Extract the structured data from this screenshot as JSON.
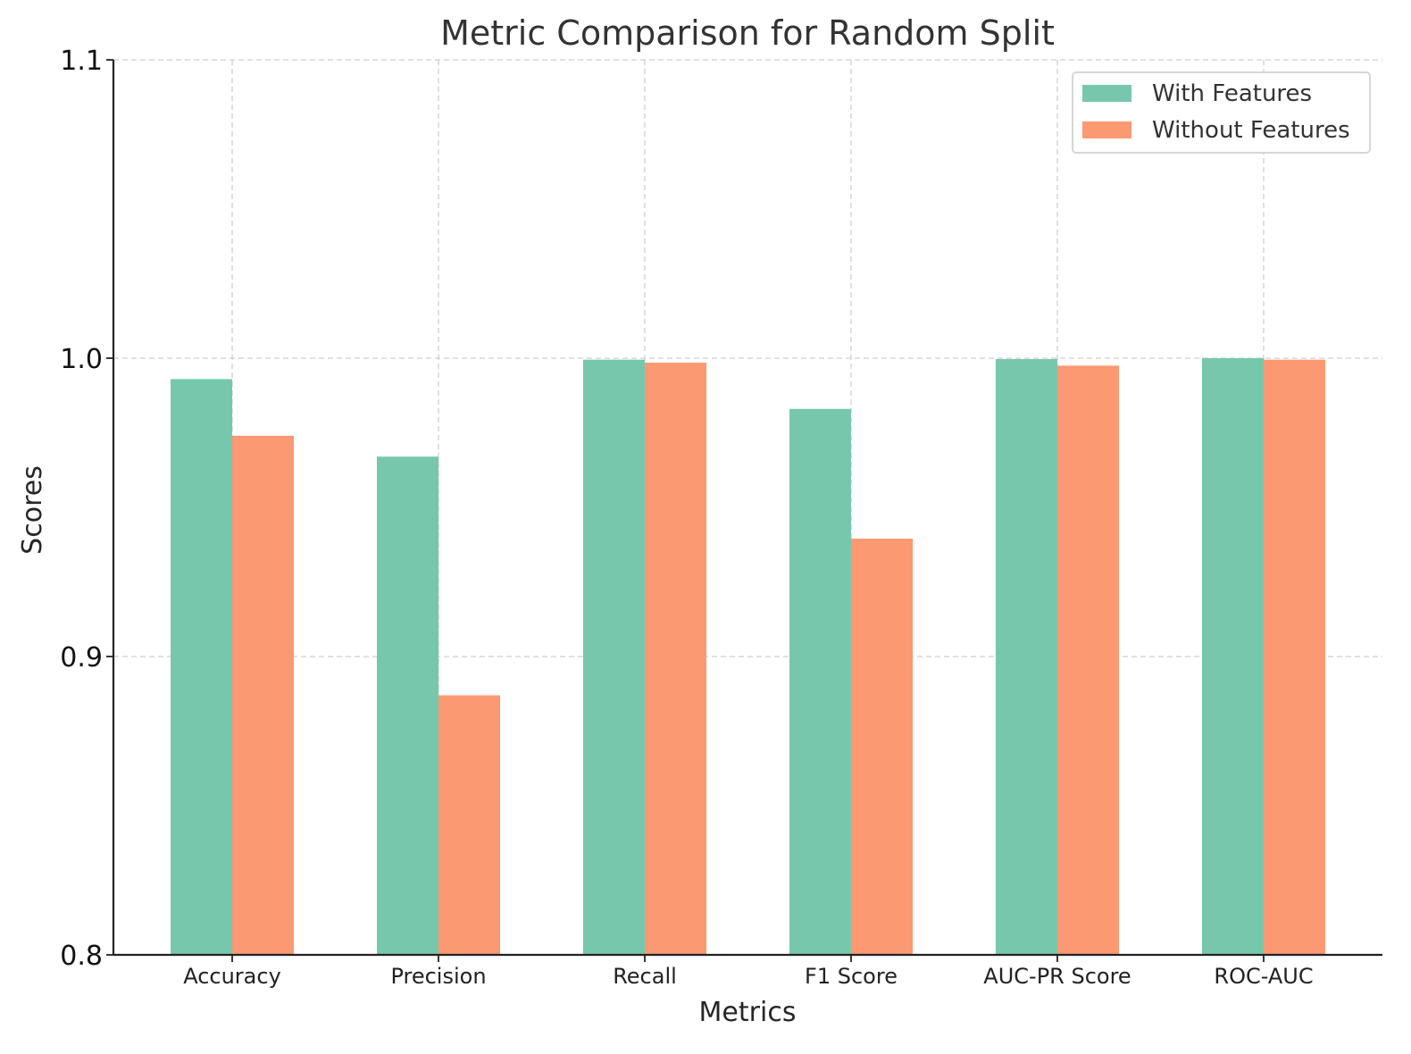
{
  "chart_data": {
    "type": "bar",
    "title": "Metric Comparison for Random Split",
    "xlabel": "Metrics",
    "ylabel": "Scores",
    "categories": [
      "Accuracy",
      "Precision",
      "Recall",
      "F1 Score",
      "AUC-PR Score",
      "ROC-AUC"
    ],
    "series": [
      {
        "name": "With Features",
        "color": "#77c7ad",
        "values": [
          0.993,
          0.967,
          0.9995,
          0.983,
          0.9997,
          1.0
        ]
      },
      {
        "name": "Without Features",
        "color": "#fa9972",
        "values": [
          0.974,
          0.887,
          0.9985,
          0.9395,
          0.9975,
          0.9995
        ]
      }
    ],
    "ylim": [
      0.8,
      1.1
    ],
    "yticks": [
      "0.8",
      "0.9",
      "1.0",
      "1.1"
    ],
    "grid": true,
    "legend_position": "top-right"
  }
}
